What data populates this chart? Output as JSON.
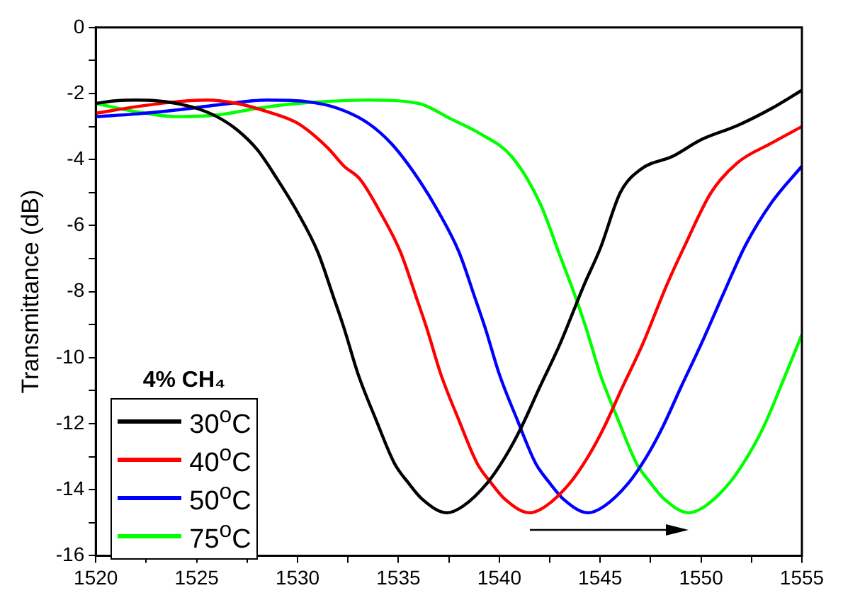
{
  "chart_data": {
    "type": "line",
    "ylabel": "Transmittance (dB)",
    "legend_title": "4% CH₄",
    "legend": "bottom left",
    "marker": "none",
    "line_style": "solid",
    "grid": false,
    "xlim": [
      1520,
      1555
    ],
    "ylim": [
      -16,
      0
    ],
    "xticks": [
      1520,
      {
        "value": 1522.5,
        "label": null
      },
      1525,
      {
        "value": 1527.5,
        "label": null
      },
      1530,
      {
        "value": 1532.5,
        "label": null
      },
      1535,
      {
        "value": 1537.5,
        "label": null
      },
      1540,
      {
        "value": 1542.5,
        "label": null
      },
      1545,
      {
        "value": 1547.5,
        "label": null
      },
      1550,
      {
        "value": 1552.5,
        "label": null
      },
      1555
    ],
    "yticks": [
      -16,
      {
        "value": -15,
        "label": null
      },
      -14,
      {
        "value": -13,
        "label": null
      },
      -12,
      {
        "value": -11,
        "label": null
      },
      -10,
      {
        "value": -9,
        "label": null
      },
      -8,
      {
        "value": -7,
        "label": null
      },
      -6,
      {
        "value": -5,
        "label": null
      },
      -4,
      {
        "value": -3,
        "label": null
      },
      -2,
      {
        "value": -1,
        "label": null
      },
      0
    ],
    "series": [
      {
        "name": "30$^{o}$C",
        "color": "#000000",
        "x": [
          1520,
          1521,
          1522,
          1523,
          1524,
          1525,
          1526,
          1527,
          1528,
          1529,
          1530,
          1531,
          1531.8,
          1532.3,
          1533,
          1533.9,
          1534.8,
          1535.5,
          1536.2,
          1537.4,
          1538.2,
          1539.4,
          1540.3,
          1541.1,
          1542,
          1543,
          1544.2,
          1545,
          1546,
          1547,
          1548.6,
          1550,
          1551.8,
          1553.5,
          1555
        ],
        "values": [
          -2.3,
          -2.22,
          -2.2,
          -2.22,
          -2.3,
          -2.45,
          -2.7,
          -3.1,
          -3.7,
          -4.6,
          -5.6,
          -6.8,
          -8.2,
          -9.1,
          -10.5,
          -11.9,
          -13.2,
          -13.8,
          -14.3,
          -14.7,
          -14.5,
          -13.8,
          -13,
          -12.1,
          -10.9,
          -9.6,
          -7.8,
          -6.7,
          -5,
          -4.3,
          -3.9,
          -3.4,
          -2.97,
          -2.45,
          -1.9
        ]
      },
      {
        "name": "40$^{o}$C",
        "color": "#ff0000",
        "x": [
          1520,
          1522,
          1524,
          1525.5,
          1527,
          1528.5,
          1530,
          1531.5,
          1532.3,
          1533.1,
          1534.1,
          1535.1,
          1535.9,
          1536.4,
          1537.1,
          1538,
          1538.9,
          1539.6,
          1540.3,
          1541.5,
          1542.3,
          1543.5,
          1544.4,
          1545.2,
          1546.1,
          1547.1,
          1548.3,
          1549.2,
          1550.5,
          1551.8,
          1553.5,
          1555
        ],
        "values": [
          -2.6,
          -2.4,
          -2.25,
          -2.2,
          -2.3,
          -2.55,
          -2.9,
          -3.65,
          -4.2,
          -4.6,
          -5.6,
          -6.8,
          -8.2,
          -9.1,
          -10.5,
          -11.9,
          -13.2,
          -13.8,
          -14.3,
          -14.7,
          -14.5,
          -13.8,
          -13,
          -12.1,
          -10.9,
          -9.6,
          -7.8,
          -6.6,
          -5,
          -4.1,
          -3.5,
          -3
        ]
      },
      {
        "name": "50$^{o}$C",
        "color": "#0000ff",
        "x": [
          1520,
          1522,
          1524,
          1526,
          1528.5,
          1530.5,
          1532,
          1533.5,
          1534.7,
          1536,
          1537,
          1538,
          1538.8,
          1539.3,
          1540,
          1540.9,
          1541.8,
          1542.5,
          1543.2,
          1544.4,
          1545.2,
          1546.4,
          1547.3,
          1548.1,
          1549,
          1550,
          1551.3,
          1552.2,
          1553.5,
          1555
        ],
        "values": [
          -2.7,
          -2.62,
          -2.5,
          -2.35,
          -2.2,
          -2.25,
          -2.45,
          -2.9,
          -3.55,
          -4.6,
          -5.6,
          -6.8,
          -8.2,
          -9.1,
          -10.5,
          -11.9,
          -13.2,
          -13.8,
          -14.3,
          -14.7,
          -14.5,
          -13.8,
          -13,
          -12.1,
          -10.9,
          -9.6,
          -7.8,
          -6.6,
          -5.3,
          -4.2
        ]
      },
      {
        "name": "75$^{o}$C",
        "color": "#00ff00",
        "x": [
          1520,
          1522,
          1524,
          1526,
          1528,
          1530,
          1533.5,
          1536,
          1537.6,
          1539,
          1540.6,
          1542,
          1543,
          1543.8,
          1544.3,
          1545,
          1545.9,
          1546.8,
          1547.5,
          1548.2,
          1549.4,
          1550.2,
          1551.4,
          1552.3,
          1553.1,
          1554,
          1555
        ],
        "values": [
          -2.3,
          -2.55,
          -2.7,
          -2.65,
          -2.45,
          -2.3,
          -2.2,
          -2.3,
          -2.77,
          -3.2,
          -3.9,
          -5.3,
          -6.9,
          -8.2,
          -9.1,
          -10.5,
          -11.9,
          -13.2,
          -13.8,
          -14.3,
          -14.7,
          -14.5,
          -13.8,
          -13,
          -12.1,
          -10.8,
          -9.3
        ]
      }
    ]
  }
}
